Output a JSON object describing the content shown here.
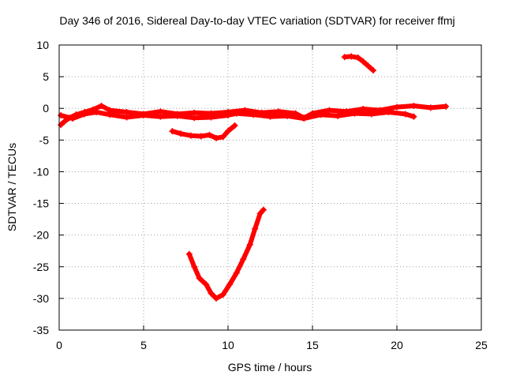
{
  "chart_data": {
    "type": "scatter",
    "title": "Day 346 of 2016, Sidereal Day-to-day VTEC variation (SDTVAR) for receiver ffmj",
    "xlabel": "GPS time / hours",
    "ylabel": "SDTVAR / TECUs",
    "xlim": [
      0,
      25
    ],
    "ylim": [
      -35,
      10
    ],
    "xticks": [
      0,
      5,
      10,
      15,
      20,
      25
    ],
    "yticks": [
      -35,
      -30,
      -25,
      -20,
      -15,
      -10,
      -5,
      0,
      5,
      10
    ],
    "xtick_labels": [
      "0",
      "5",
      "10",
      "15",
      "20",
      "25"
    ],
    "ytick_labels": [
      "-35",
      "-30",
      "-25",
      "-20",
      "-15",
      "-10",
      "-5",
      "0",
      "5",
      "10"
    ],
    "grid": true,
    "legend": "none",
    "color": "#ff0000",
    "series": [
      {
        "name": "arc-near-zero-a",
        "points": [
          [
            0.1,
            -2.6
          ],
          [
            0.3,
            -2.1
          ],
          [
            0.6,
            -1.5
          ],
          [
            1.0,
            -1.0
          ],
          [
            1.5,
            -0.6
          ],
          [
            2.0,
            -0.2
          ],
          [
            2.5,
            0.4
          ],
          [
            3.0,
            -0.3
          ],
          [
            4.0,
            -0.6
          ],
          [
            5.0,
            -0.9
          ],
          [
            6.0,
            -0.5
          ],
          [
            7.0,
            -0.9
          ],
          [
            8.0,
            -0.7
          ],
          [
            9.0,
            -0.8
          ],
          [
            10.0,
            -0.6
          ],
          [
            11.0,
            -0.3
          ],
          [
            12.0,
            -0.7
          ],
          [
            13.0,
            -0.5
          ],
          [
            14.0,
            -0.8
          ],
          [
            14.5,
            -1.5
          ],
          [
            15.0,
            -0.8
          ],
          [
            16.0,
            -0.3
          ],
          [
            17.0,
            -0.5
          ],
          [
            18.0,
            -0.1
          ],
          [
            19.0,
            -0.3
          ],
          [
            20.0,
            0.2
          ],
          [
            21.0,
            0.4
          ],
          [
            22.0,
            0.1
          ],
          [
            22.9,
            0.3
          ]
        ]
      },
      {
        "name": "arc-near-zero-b",
        "points": [
          [
            0.1,
            -1.1
          ],
          [
            0.8,
            -1.6
          ],
          [
            1.5,
            -0.9
          ],
          [
            2.2,
            -0.6
          ],
          [
            3.0,
            -1.0
          ],
          [
            4.0,
            -1.4
          ],
          [
            5.0,
            -1.1
          ],
          [
            6.0,
            -1.3
          ],
          [
            7.0,
            -1.2
          ],
          [
            8.0,
            -1.5
          ],
          [
            9.0,
            -1.4
          ],
          [
            10.0,
            -1.1
          ],
          [
            10.5,
            -0.8
          ],
          [
            11.5,
            -1.0
          ],
          [
            12.5,
            -1.3
          ],
          [
            13.5,
            -1.2
          ],
          [
            14.5,
            -1.6
          ],
          [
            15.5,
            -1.0
          ],
          [
            16.5,
            -1.2
          ],
          [
            17.5,
            -0.8
          ],
          [
            18.5,
            -0.9
          ],
          [
            19.5,
            -0.6
          ],
          [
            20.5,
            -0.9
          ],
          [
            21.0,
            -1.3
          ]
        ]
      },
      {
        "name": "arc-minus-four",
        "points": [
          [
            6.7,
            -3.6
          ],
          [
            7.2,
            -4.0
          ],
          [
            7.8,
            -4.3
          ],
          [
            8.4,
            -4.4
          ],
          [
            8.9,
            -4.2
          ],
          [
            9.3,
            -4.7
          ],
          [
            9.7,
            -4.5
          ],
          [
            10.0,
            -3.6
          ],
          [
            10.4,
            -2.7
          ]
        ]
      },
      {
        "name": "arc-v-shape",
        "points": [
          [
            7.7,
            -23.0
          ],
          [
            8.0,
            -25.0
          ],
          [
            8.3,
            -26.8
          ],
          [
            8.7,
            -27.8
          ],
          [
            9.0,
            -29.2
          ],
          [
            9.3,
            -30.0
          ],
          [
            9.7,
            -29.4
          ],
          [
            10.1,
            -27.8
          ],
          [
            10.5,
            -26.0
          ],
          [
            10.9,
            -23.8
          ],
          [
            11.3,
            -21.5
          ],
          [
            11.6,
            -19.0
          ],
          [
            11.9,
            -16.6
          ],
          [
            12.1,
            -16.0
          ]
        ]
      },
      {
        "name": "arc-plus-eight",
        "points": [
          [
            16.9,
            8.1
          ],
          [
            17.3,
            8.2
          ],
          [
            17.7,
            8.0
          ],
          [
            18.0,
            7.4
          ],
          [
            18.3,
            6.7
          ],
          [
            18.6,
            6.0
          ]
        ]
      }
    ]
  }
}
